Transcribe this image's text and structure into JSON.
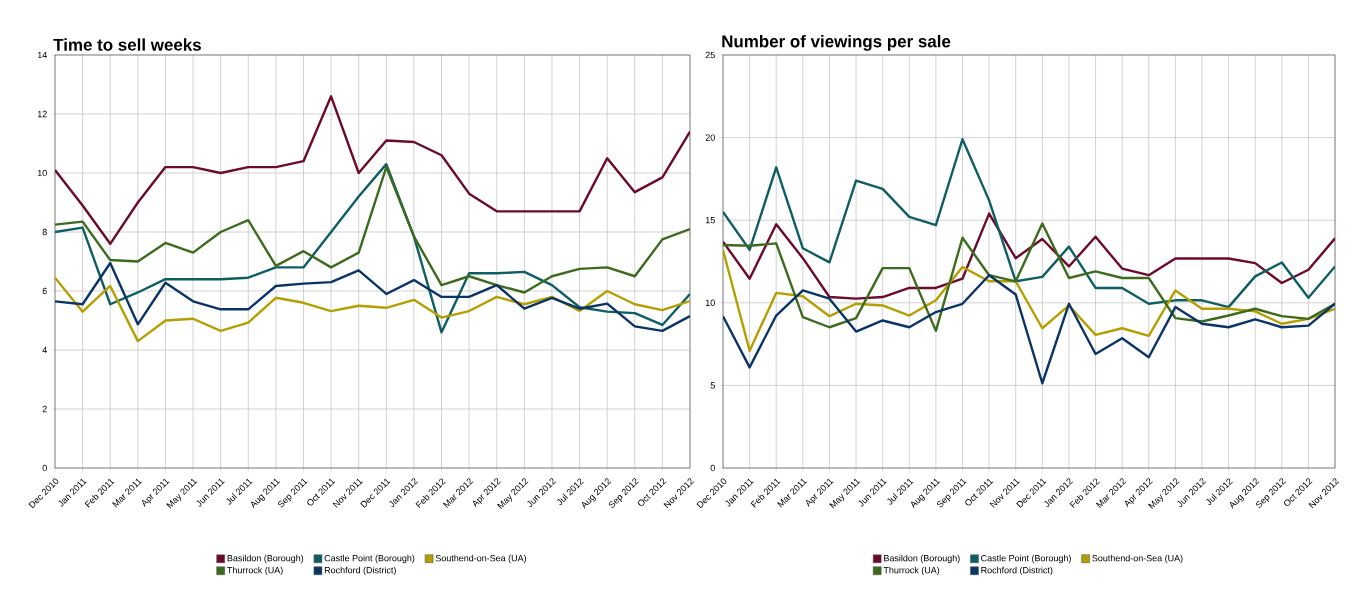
{
  "chart_data": [
    {
      "type": "line",
      "title": "Time to sell weeks",
      "categories": [
        "Dec 2010",
        "Jan 2011",
        "Feb 2011",
        "Mar 2011",
        "Apr 2011",
        "May 2011",
        "Jun 2011",
        "Jul 2011",
        "Aug 2011",
        "Sep 2011",
        "Oct 2011",
        "Nov 2011",
        "Dec 2011",
        "Jan 2012",
        "Feb 2012",
        "Mar 2012",
        "Apr 2012",
        "May 2012",
        "Jun 2012",
        "Jul 2012",
        "Aug 2012",
        "Sep 2012",
        "Oct 2012",
        "Nov 2012"
      ],
      "series": [
        {
          "name": "Basildon (Borough)",
          "color": "#6b0a2a",
          "values": [
            10.1,
            8.9,
            7.6,
            9.0,
            10.2,
            10.2,
            10.0,
            10.2,
            10.2,
            10.4,
            12.6,
            10.0,
            11.1,
            11.05,
            10.6,
            9.3,
            8.7,
            8.7,
            8.7,
            8.7,
            10.5,
            9.35,
            9.85,
            11.4
          ]
        },
        {
          "name": "Castle Point (Borough)",
          "color": "#0e5e63",
          "values": [
            8.0,
            8.15,
            5.55,
            5.95,
            6.4,
            6.4,
            6.4,
            6.45,
            6.8,
            6.8,
            8.0,
            9.2,
            10.3,
            7.85,
            4.6,
            6.6,
            6.6,
            6.65,
            6.2,
            5.45,
            5.3,
            5.25,
            4.85,
            5.9
          ]
        },
        {
          "name": "Southend-on-Sea (UA)",
          "color": "#b59f00",
          "values": [
            6.45,
            5.3,
            6.17,
            4.3,
            5.0,
            5.06,
            4.65,
            4.93,
            5.77,
            5.6,
            5.32,
            5.5,
            5.43,
            5.7,
            5.1,
            5.32,
            5.8,
            5.55,
            5.8,
            5.32,
            6.0,
            5.55,
            5.35,
            5.66
          ]
        },
        {
          "name": "Thurrock (UA)",
          "color": "#3d6b1e",
          "values": [
            8.25,
            8.35,
            7.05,
            7.0,
            7.63,
            7.3,
            8.0,
            8.4,
            6.85,
            7.35,
            6.8,
            7.3,
            10.2,
            7.85,
            6.2,
            6.5,
            6.2,
            5.95,
            6.5,
            6.75,
            6.8,
            6.5,
            7.75,
            8.1
          ]
        },
        {
          "name": "Rochford (District)",
          "color": "#0b3466",
          "values": [
            5.65,
            5.55,
            6.95,
            4.87,
            6.28,
            5.65,
            5.38,
            5.38,
            6.17,
            6.25,
            6.3,
            6.7,
            5.9,
            6.37,
            5.8,
            5.8,
            6.2,
            5.4,
            5.77,
            5.4,
            5.57,
            4.8,
            4.65,
            5.15
          ]
        }
      ],
      "ylim": [
        0,
        14
      ],
      "yticks": [
        0,
        2,
        4,
        6,
        8,
        10,
        12,
        14
      ],
      "grid": true,
      "legend": "bottom"
    },
    {
      "type": "line",
      "title": "Number of viewings per sale",
      "categories": [
        "Dec 2010",
        "Jan 2011",
        "Feb 2011",
        "Mar 2011",
        "Apr 2011",
        "May 2011",
        "Jun 2011",
        "Jul 2011",
        "Aug 2011",
        "Sep 2011",
        "Oct 2011",
        "Nov 2011",
        "Dec 2011",
        "Jan 2012",
        "Feb 2012",
        "Mar 2012",
        "Apr 2012",
        "May 2012",
        "Jun 2012",
        "Jul 2012",
        "Aug 2012",
        "Sep 2012",
        "Oct 2012",
        "Nov 2012"
      ],
      "series": [
        {
          "name": "Basildon (Borough)",
          "color": "#6b0a2a",
          "values": [
            13.7,
            11.46,
            14.75,
            12.7,
            10.35,
            10.25,
            10.35,
            10.9,
            10.9,
            11.46,
            15.4,
            12.7,
            13.86,
            12.2,
            14.0,
            12.07,
            11.67,
            12.68,
            12.68,
            12.68,
            12.4,
            11.2,
            12.0,
            13.9
          ]
        },
        {
          "name": "Castle Point (Borough)",
          "color": "#0e5e63",
          "values": [
            15.5,
            13.2,
            18.2,
            13.3,
            12.45,
            17.4,
            16.9,
            15.2,
            14.7,
            19.9,
            16.2,
            11.3,
            11.57,
            13.4,
            10.9,
            10.9,
            9.94,
            10.15,
            10.15,
            9.74,
            11.6,
            12.44,
            10.3,
            12.2
          ]
        },
        {
          "name": "Southend-on-Sea (UA)",
          "color": "#b59f00",
          "values": [
            13.2,
            7.1,
            10.6,
            10.4,
            9.19,
            9.94,
            9.84,
            9.23,
            10.15,
            12.17,
            11.3,
            11.3,
            8.46,
            9.84,
            8.06,
            8.46,
            8.0,
            10.75,
            9.64,
            9.64,
            9.48,
            8.73,
            9.03,
            9.64
          ]
        },
        {
          "name": "Thurrock (UA)",
          "color": "#3d6b1e",
          "values": [
            13.5,
            13.45,
            13.6,
            9.13,
            8.52,
            9.07,
            12.1,
            12.1,
            8.3,
            13.94,
            11.67,
            11.3,
            14.8,
            11.5,
            11.9,
            11.5,
            11.5,
            9.07,
            8.87,
            9.23,
            9.64,
            9.19,
            9.03,
            9.94
          ]
        },
        {
          "name": "Rochford (District)",
          "color": "#0b3466",
          "values": [
            9.19,
            6.09,
            9.23,
            10.75,
            10.25,
            8.26,
            8.93,
            8.52,
            9.44,
            9.94,
            11.67,
            10.5,
            5.13,
            9.94,
            6.9,
            7.85,
            6.7,
            9.74,
            8.73,
            8.52,
            9.0,
            8.52,
            8.62,
            9.94
          ]
        }
      ],
      "ylim": [
        0,
        25
      ],
      "yticks": [
        0,
        5,
        10,
        15,
        20,
        25
      ],
      "grid": true,
      "legend": "bottom"
    }
  ]
}
